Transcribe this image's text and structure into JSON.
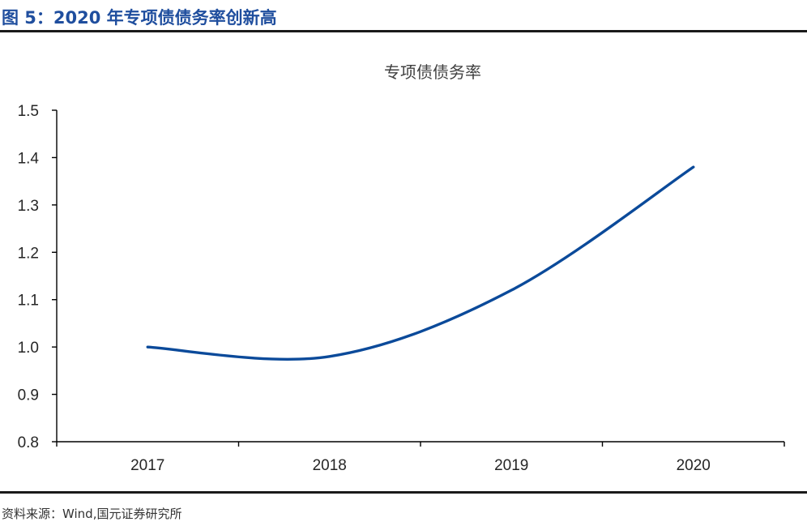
{
  "figure": {
    "title": "图 5：2020 年专项债债务率创新高",
    "source": "资料来源：Wind,国元证券研究所"
  },
  "colors": {
    "title_blue": "#1f4e9e",
    "line_blue": "#0b4a9a",
    "axis": "#000000"
  },
  "chart_data": {
    "type": "line",
    "title": "专项债债务率",
    "categories": [
      "2017",
      "2018",
      "2019",
      "2020"
    ],
    "series": [
      {
        "values": [
          1.0,
          0.98,
          1.12,
          1.38
        ]
      }
    ],
    "y_ticks": [
      "1.5",
      "1.4",
      "1.3",
      "1.2",
      "1.1",
      "1.0",
      "0.9",
      "0.8"
    ],
    "ylim": [
      0.8,
      1.5
    ],
    "grid": false,
    "legend": "none",
    "smooth": true
  }
}
